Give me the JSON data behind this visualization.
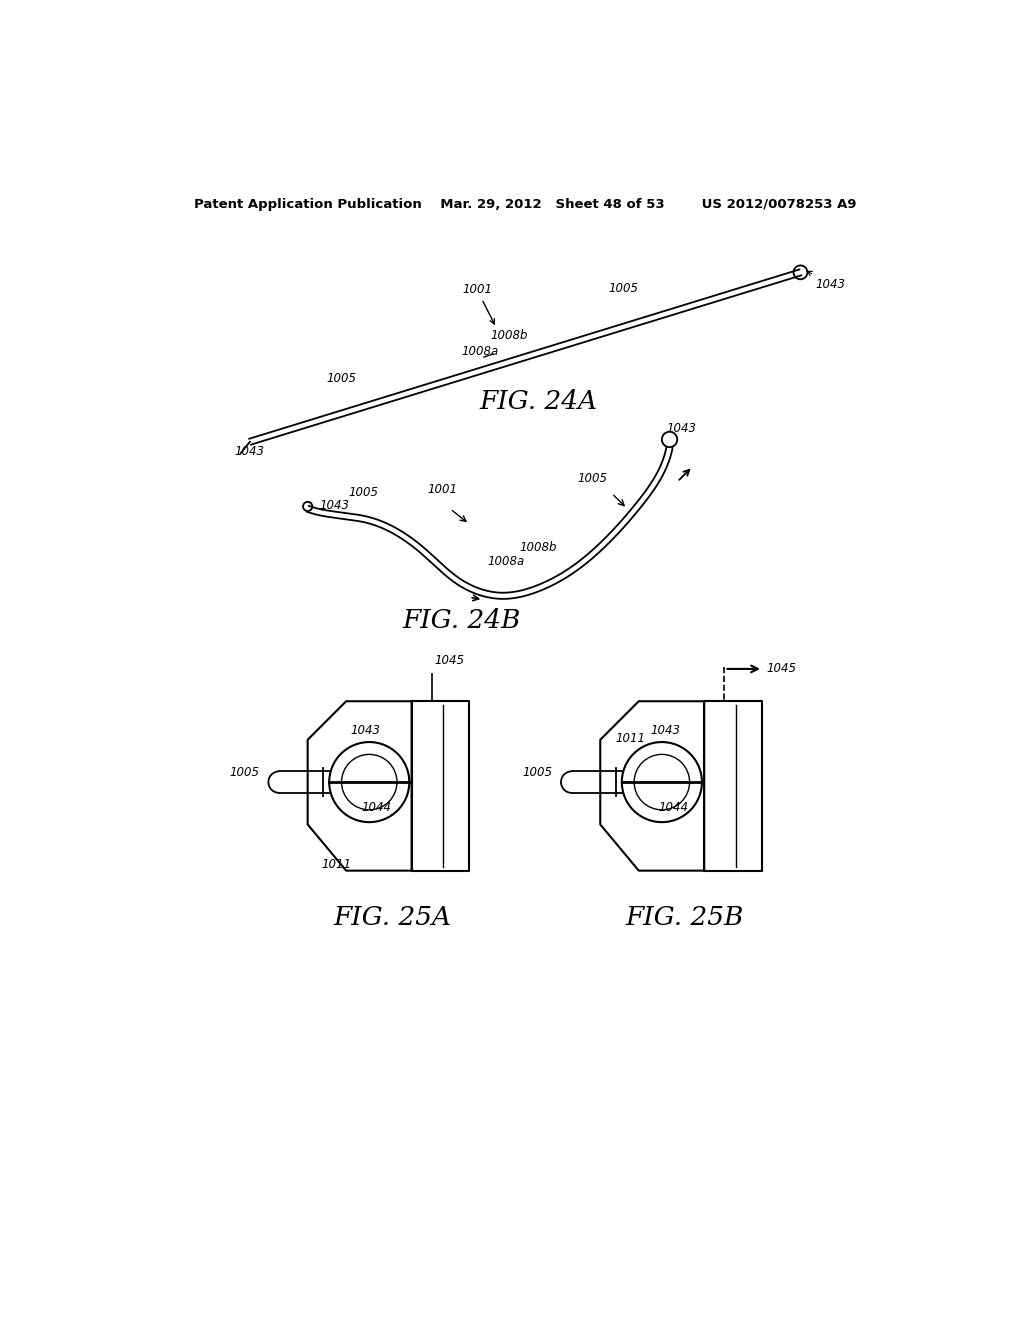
{
  "header": "Patent Application Publication    Mar. 29, 2012   Sheet 48 of 53        US 2012/0078253 A9",
  "fig24A_label": "FIG. 24A",
  "fig24B_label": "FIG. 24B",
  "fig25A_label": "FIG. 25A",
  "fig25B_label": "FIG. 25B",
  "bg_color": "#ffffff",
  "lc": "#000000"
}
